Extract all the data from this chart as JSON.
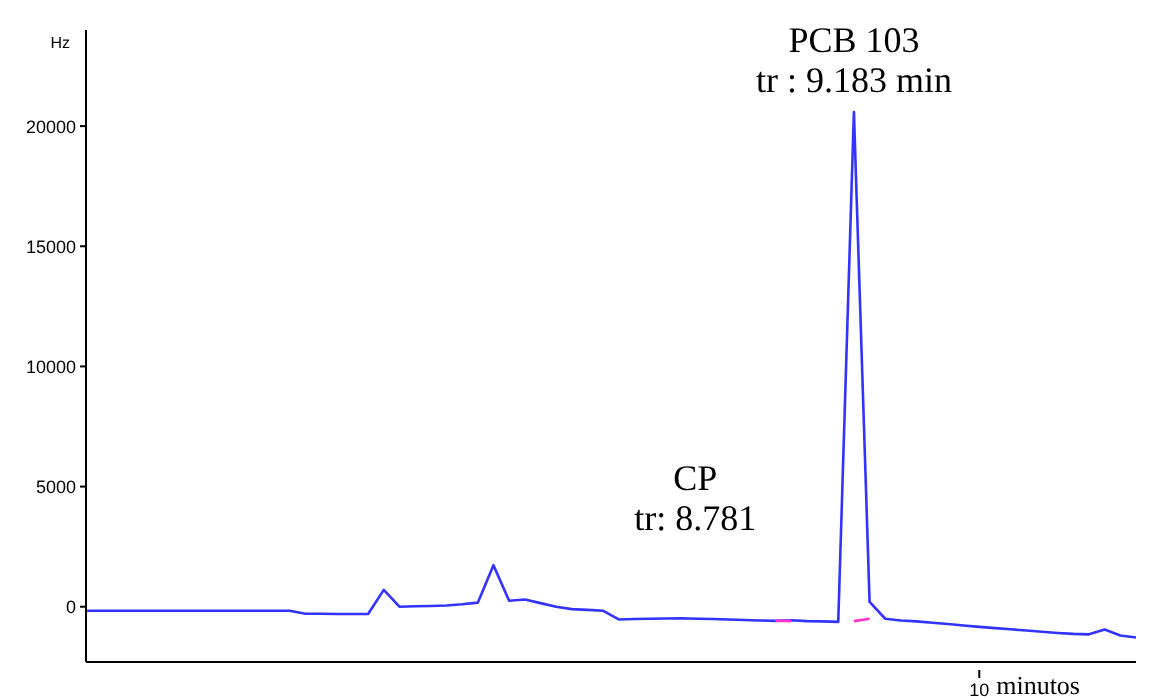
{
  "chart_data": {
    "type": "line",
    "xlabel": "minutos",
    "ylabel": "Hz",
    "categories": [
      null,
      null,
      null,
      null,
      null,
      null,
      null,
      null,
      null,
      null,
      null,
      null,
      null,
      null,
      null,
      null,
      null,
      null,
      null,
      null,
      null,
      null,
      null,
      null,
      null,
      null,
      null,
      null,
      null,
      null,
      null,
      null,
      null,
      null,
      null,
      null,
      null,
      null,
      null,
      null,
      null,
      null,
      null,
      null,
      null,
      null,
      null,
      null,
      null,
      null,
      null,
      null,
      null,
      null,
      null,
      null,
      null,
      "10",
      null,
      null,
      null,
      null,
      null,
      null,
      null,
      null,
      null,
      null
    ],
    "ylim": [
      -2300,
      24000
    ],
    "yticks": [
      0,
      5000,
      10000,
      15000,
      20000
    ],
    "grid": false,
    "marker": "none",
    "line_style": "solid",
    "series": [
      {
        "color": "#3333ff",
        "values": [
          -170,
          -170,
          -170,
          -170,
          -170,
          -170,
          -170,
          -170,
          -170,
          -170,
          -170,
          -170,
          -170,
          -170,
          -290,
          -290,
          -300,
          -300,
          -300,
          700,
          0,
          20,
          30,
          50,
          100,
          170,
          1730,
          250,
          300,
          150,
          0,
          -100,
          -130,
          -170,
          -530,
          -510,
          -500,
          -490,
          -480,
          -500,
          -510,
          -530,
          -550,
          -570,
          -590,
          -560,
          -600,
          -610,
          -630,
          20590,
          200,
          -500,
          -575,
          -610,
          -670,
          -720,
          -780,
          -840,
          -890,
          -940,
          -990,
          -1040,
          -1090,
          -1130,
          -1150,
          -950,
          -1200,
          -1280
        ]
      },
      {
        "color": "#ff33cc",
        "values": [
          null,
          null,
          null,
          null,
          null,
          null,
          null,
          null,
          null,
          null,
          null,
          null,
          null,
          null,
          null,
          null,
          null,
          null,
          null,
          null,
          null,
          null,
          null,
          null,
          null,
          null,
          null,
          null,
          null,
          null,
          null,
          null,
          null,
          null,
          null,
          null,
          null,
          null,
          null,
          null,
          null,
          null,
          null,
          null,
          -580,
          -600,
          null,
          null,
          null,
          null,
          null,
          null,
          null,
          null,
          null,
          null,
          null,
          null,
          null,
          null,
          null,
          null,
          null,
          null,
          null,
          null,
          null,
          null
        ]
      },
      {
        "color": "#ff33cc",
        "values": [
          null,
          null,
          null,
          null,
          null,
          null,
          null,
          null,
          null,
          null,
          null,
          null,
          null,
          null,
          null,
          null,
          null,
          null,
          null,
          null,
          null,
          null,
          null,
          null,
          null,
          null,
          null,
          null,
          null,
          null,
          null,
          null,
          null,
          null,
          null,
          null,
          null,
          null,
          null,
          null,
          null,
          null,
          null,
          null,
          null,
          null,
          null,
          null,
          null,
          -600,
          -500,
          null,
          null,
          null,
          null,
          null,
          null,
          null,
          null,
          null,
          null,
          null,
          null,
          null,
          null,
          null,
          null,
          null
        ]
      }
    ],
    "annotations": [
      {
        "text": "PCB 103\ntr : 9.183 min",
        "y": 20590
      },
      {
        "text": "CP\ntr: 8.781",
        "y": -560
      }
    ]
  }
}
